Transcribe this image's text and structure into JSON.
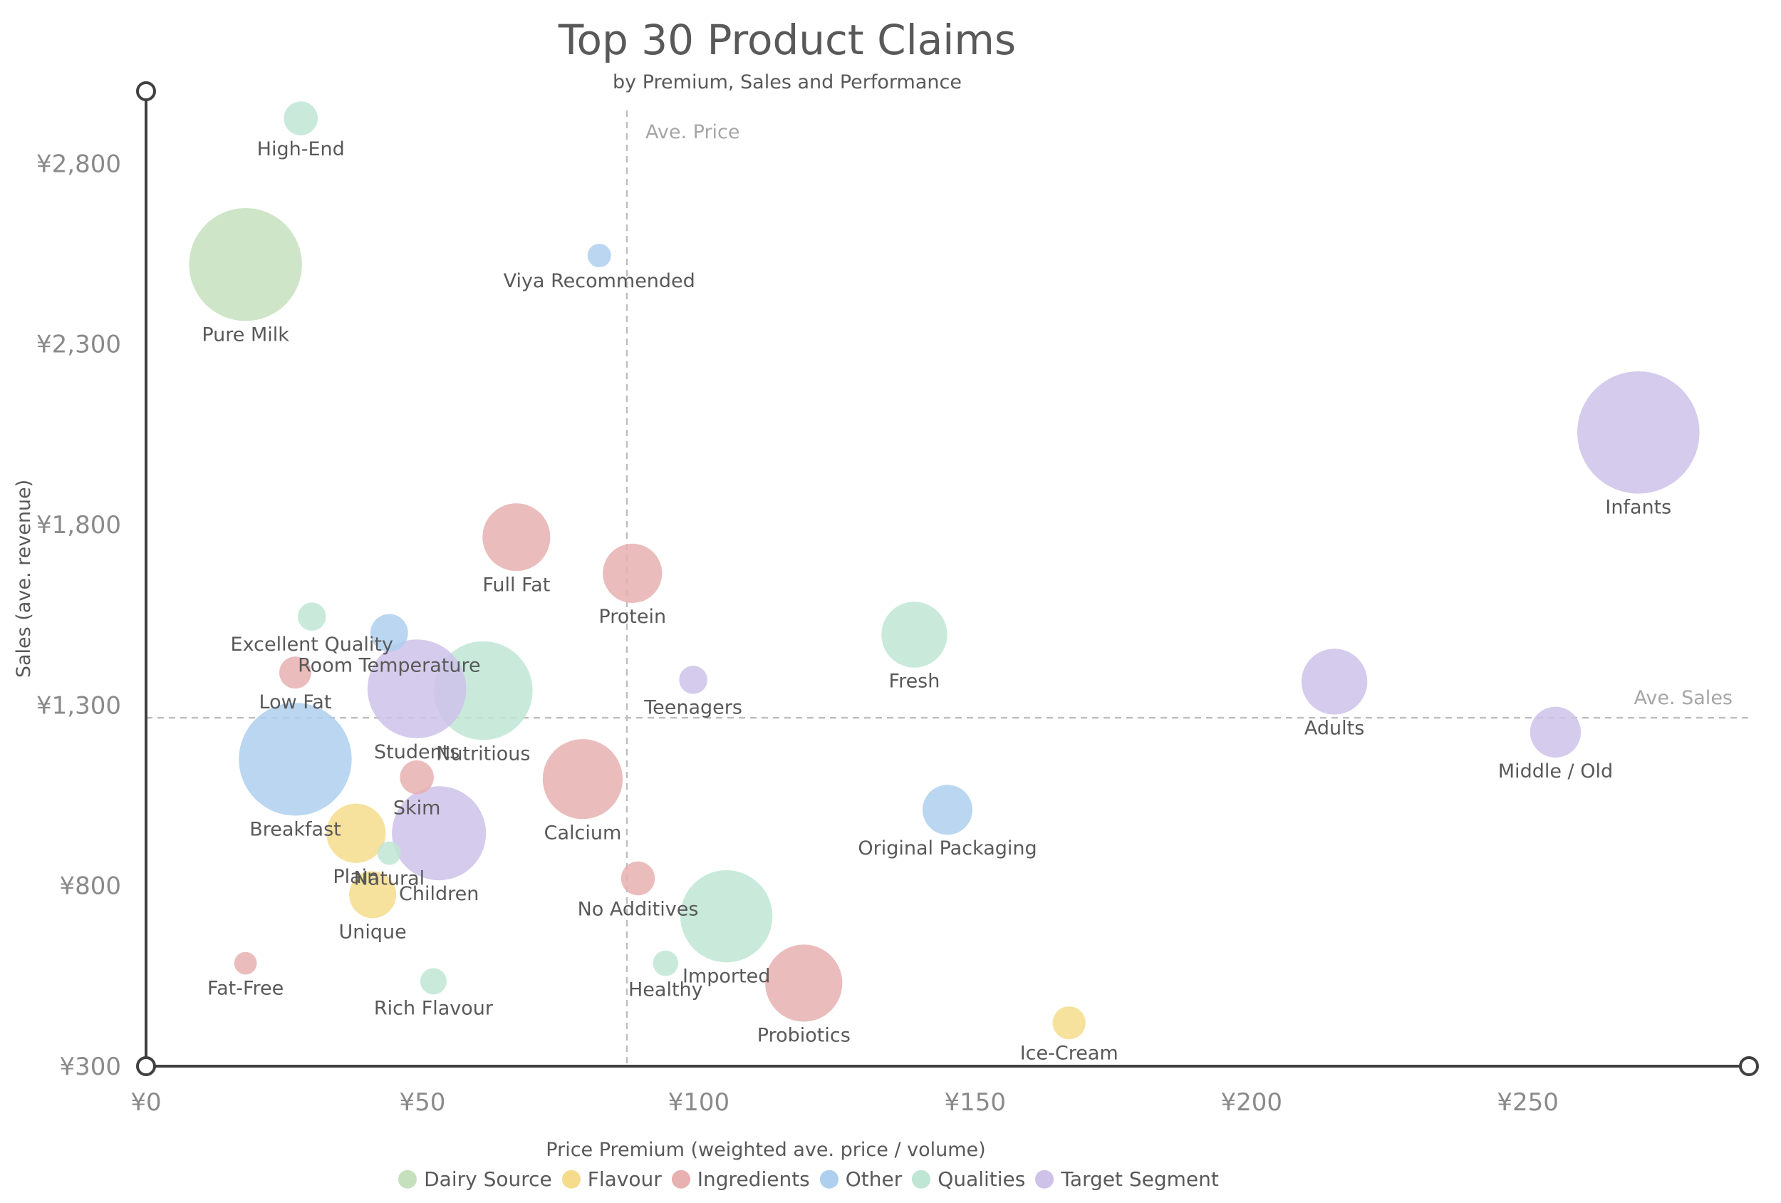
{
  "chart_data": {
    "type": "scatter",
    "title": "Top 30 Product Claims",
    "subtitle": "by Premium, Sales and Performance",
    "xlabel": "Price Premium (weighted ave. price / volume)",
    "ylabel": "Sales (ave. revenue)",
    "xlim": [
      0,
      290
    ],
    "ylim": [
      300,
      3000
    ],
    "x_ticks": [
      0,
      50,
      100,
      150,
      200,
      250
    ],
    "x_tick_labels": [
      "¥0",
      "¥50",
      "¥100",
      "¥150",
      "¥200",
      "¥250"
    ],
    "y_ticks": [
      300,
      800,
      1300,
      1800,
      2300,
      2800
    ],
    "y_tick_labels": [
      "¥300",
      "¥800",
      "¥1,300",
      "¥1,800",
      "¥2,300",
      "¥2,800"
    ],
    "grid": false,
    "legend_position": "bottom",
    "reference_lines": [
      {
        "axis": "x",
        "value": 87,
        "label": "Ave. Price"
      },
      {
        "axis": "y",
        "value": 1265,
        "label": "Ave. Sales"
      }
    ],
    "groups": [
      {
        "name": "Dairy Source",
        "color": "#c5e0bd"
      },
      {
        "name": "Flavour",
        "color": "#f5dc8c"
      },
      {
        "name": "Ingredients",
        "color": "#e8b0b0"
      },
      {
        "name": "Other",
        "color": "#aecfee"
      },
      {
        "name": "Qualities",
        "color": "#bfe6d4"
      },
      {
        "name": "Target Segment",
        "color": "#cec2e9"
      }
    ],
    "points": [
      {
        "label": "High-End",
        "group": "Qualities",
        "x": 28,
        "y": 2925,
        "size": 36
      },
      {
        "label": "Pure Milk",
        "group": "Dairy Source",
        "x": 18,
        "y": 2520,
        "size": 120
      },
      {
        "label": "Viya Recommended",
        "group": "Other",
        "x": 82,
        "y": 2545,
        "size": 25
      },
      {
        "label": "Infants",
        "group": "Target Segment",
        "x": 270,
        "y": 2055,
        "size": 130
      },
      {
        "label": "Full Fat",
        "group": "Ingredients",
        "x": 67,
        "y": 1765,
        "size": 72
      },
      {
        "label": "Protein",
        "group": "Ingredients",
        "x": 88,
        "y": 1665,
        "size": 63
      },
      {
        "label": "Excellent Quality",
        "group": "Qualities",
        "x": 30,
        "y": 1545,
        "size": 30
      },
      {
        "label": "Room Temperature",
        "group": "Other",
        "x": 44,
        "y": 1500,
        "size": 40
      },
      {
        "label": "Fresh",
        "group": "Qualities",
        "x": 139,
        "y": 1495,
        "size": 70
      },
      {
        "label": "Low Fat",
        "group": "Ingredients",
        "x": 27,
        "y": 1390,
        "size": 34
      },
      {
        "label": "Teenagers",
        "group": "Target Segment",
        "x": 99,
        "y": 1370,
        "size": 30
      },
      {
        "label": "Adults",
        "group": "Target Segment",
        "x": 215,
        "y": 1365,
        "size": 70
      },
      {
        "label": "Nutritious",
        "group": "Qualities",
        "x": 61,
        "y": 1340,
        "size": 105
      },
      {
        "label": "Students",
        "group": "Target Segment",
        "x": 49,
        "y": 1345,
        "size": 105
      },
      {
        "label": "Middle / Old",
        "group": "Target Segment",
        "x": 255,
        "y": 1225,
        "size": 54
      },
      {
        "label": "Breakfast",
        "group": "Other",
        "x": 27,
        "y": 1150,
        "size": 120
      },
      {
        "label": "Skim",
        "group": "Ingredients",
        "x": 49,
        "y": 1100,
        "size": 36
      },
      {
        "label": "Calcium",
        "group": "Ingredients",
        "x": 79,
        "y": 1095,
        "size": 85
      },
      {
        "label": "Original Packaging",
        "group": "Other",
        "x": 145,
        "y": 1010,
        "size": 53
      },
      {
        "label": "Plain",
        "group": "Flavour",
        "x": 38,
        "y": 945,
        "size": 63
      },
      {
        "label": "Children",
        "group": "Target Segment",
        "x": 53,
        "y": 945,
        "size": 100
      },
      {
        "label": "Natural",
        "group": "Qualities",
        "x": 44,
        "y": 890,
        "size": 25
      },
      {
        "label": "Unique",
        "group": "Flavour",
        "x": 41,
        "y": 775,
        "size": 50
      },
      {
        "label": "No Additives",
        "group": "Ingredients",
        "x": 89,
        "y": 820,
        "size": 36
      },
      {
        "label": "Imported",
        "group": "Qualities",
        "x": 105,
        "y": 715,
        "size": 98
      },
      {
        "label": "Fat-Free",
        "group": "Ingredients",
        "x": 18,
        "y": 585,
        "size": 24
      },
      {
        "label": "Healthy",
        "group": "Qualities",
        "x": 94,
        "y": 585,
        "size": 27
      },
      {
        "label": "Probiotics",
        "group": "Ingredients",
        "x": 119,
        "y": 530,
        "size": 82
      },
      {
        "label": "Rich Flavour",
        "group": "Qualities",
        "x": 52,
        "y": 535,
        "size": 28
      },
      {
        "label": "Ice-Cream",
        "group": "Flavour",
        "x": 167,
        "y": 420,
        "size": 35
      }
    ]
  }
}
